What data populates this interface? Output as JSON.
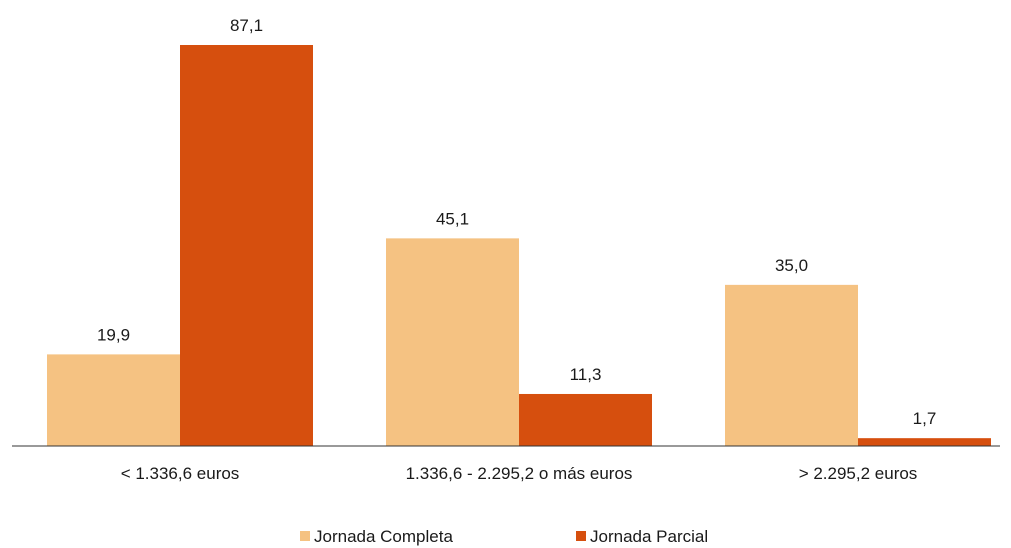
{
  "chart_data": {
    "type": "bar",
    "title": "",
    "xlabel": "",
    "ylabel": "",
    "ylim": [
      0,
      87.1
    ],
    "grid": false,
    "legend_position": "bottom-center",
    "categories": [
      "< 1.336,6 euros",
      "1.336,6 - 2.295,2 o más euros",
      "> 2.295,2 euros"
    ],
    "series": [
      {
        "name": "Jornada Completa",
        "color": "#f5c282",
        "values": [
          19.9,
          45.1,
          35.0
        ],
        "labels": [
          "19,9",
          "45,1",
          "35,0"
        ]
      },
      {
        "name": "Jornada Parcial",
        "color": "#d64f0e",
        "values": [
          87.1,
          11.3,
          1.7
        ],
        "labels": [
          "87,1",
          "11,3",
          "1,7"
        ]
      }
    ]
  }
}
